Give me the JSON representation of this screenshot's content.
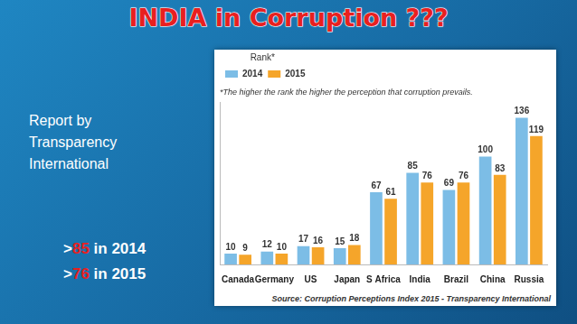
{
  "slide": {
    "title": "INDIA in Corruption ???",
    "side_text": [
      "Report by",
      "Transparency",
      "International"
    ],
    "points": [
      {
        "before": ">",
        "highlight": "85",
        "after": " in 2014"
      },
      {
        "before": ">",
        "highlight": "76",
        "after": " in 2015"
      }
    ]
  },
  "chart_data": {
    "type": "bar",
    "legend_title": "Rank*",
    "subtitle": "*The higher the rank the higher the perception that corruption prevails.",
    "annotations": [
      "Source: Corruption Perceptions Index 2015 - Transparency International"
    ],
    "categories": [
      "Canada",
      "Germany",
      "US",
      "Japan",
      "S Africa",
      "India",
      "Brazil",
      "China",
      "Russia"
    ],
    "series": [
      {
        "name": "2014",
        "color": "#7cbde6",
        "values": [
          10,
          12,
          17,
          15,
          67,
          85,
          69,
          100,
          136
        ]
      },
      {
        "name": "2015",
        "color": "#f5a52a",
        "values": [
          9,
          10,
          16,
          18,
          61,
          76,
          76,
          83,
          119
        ]
      }
    ],
    "ylim": [
      0,
      150
    ],
    "tick_labels": "x",
    "grid": false,
    "legend": "top-left",
    "data_labels": true
  }
}
